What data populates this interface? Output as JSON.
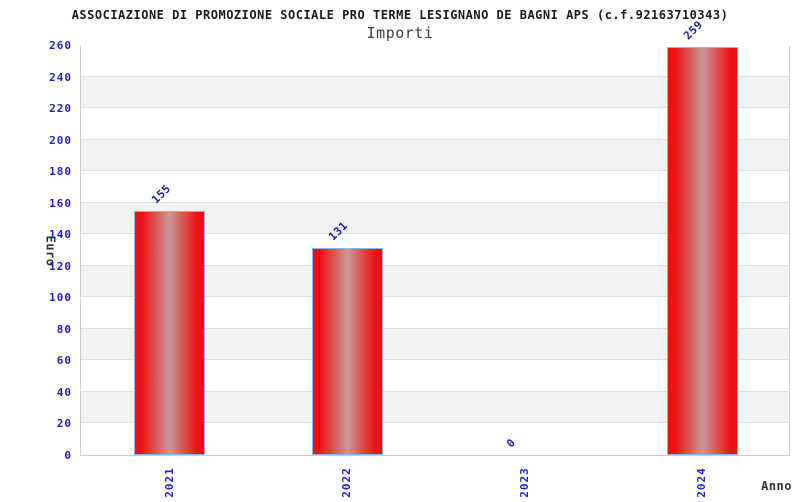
{
  "chart_data": {
    "type": "bar",
    "title": "ASSOCIAZIONE DI PROMOZIONE SOCIALE PRO TERME LESIGNANO DE BAGNI APS (c.f.92163710343)",
    "subtitle": "Importi",
    "xlabel": "Anno",
    "ylabel": "Euro",
    "categories": [
      "2021",
      "2022",
      "2023",
      "2024"
    ],
    "values": [
      155,
      131,
      0,
      259
    ],
    "value_labels": [
      "155",
      "131",
      "0",
      "259"
    ],
    "ylim": [
      0,
      260
    ],
    "ytick_step": 20,
    "ytick_labels": [
      "0",
      "20",
      "40",
      "60",
      "80",
      "100",
      "120",
      "140",
      "160",
      "180",
      "200",
      "220",
      "240",
      "260"
    ],
    "grid": "horizontal, alternating shaded bands every 20 units",
    "legend_position": "none",
    "colors": {
      "bar_edge_red": "#ee1111",
      "bar_center_highlight": "#c59898",
      "bar_border": "#8fb4f0",
      "tick_label_blue": "#2222cc",
      "value_label_navy": "#1a1aa0",
      "band_gray": "#f2f2f2",
      "band_white": "#ffffff",
      "gridline": "#e0e0e0",
      "frame": "#cccccc",
      "title_color": "#1a1a1a",
      "subtitle_color": "#3c3c3c",
      "axis_title_color": "#333333"
    }
  }
}
